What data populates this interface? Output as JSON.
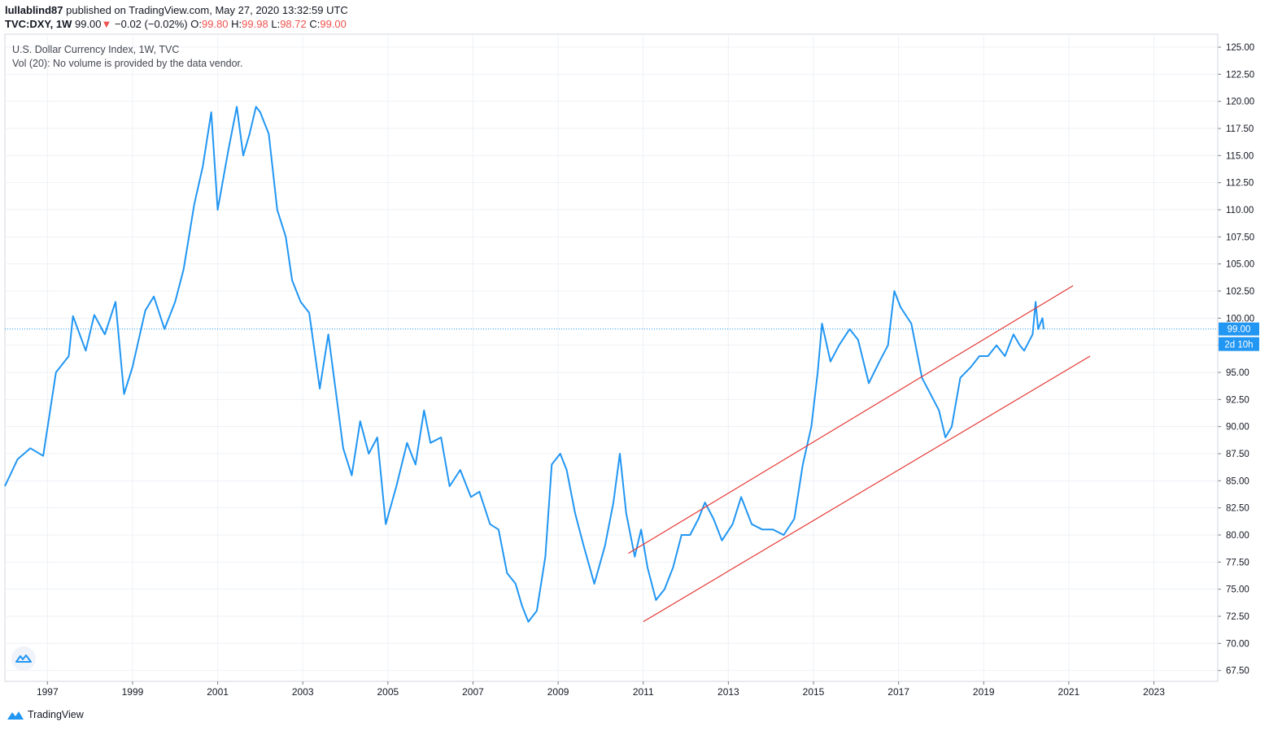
{
  "header": {
    "author": "lullablind87",
    "published_text": "published on TradingView.com, May 27, 2020 13:32:59 UTC",
    "symbol": "TVC:DXY, 1W",
    "last": "99.00",
    "change_arrow": "▼",
    "change": "−0.02 (−0.02%)",
    "o_label": "O:",
    "o_value": "99.80",
    "h_label": "H:",
    "h_value": "99.98",
    "l_label": "L:",
    "l_value": "98.72",
    "c_label": "C:",
    "c_value": "99.00"
  },
  "legend": {
    "title": "U.S. Dollar Currency Index, 1W, TVC",
    "volume": "Vol (20): No volume is provided by the data vendor."
  },
  "price_badge": "99.00",
  "countdown_badge": "2d 10h",
  "footer": {
    "brand": "TradingView"
  },
  "colors": {
    "line": "#2196f3",
    "channel": "#e53935",
    "badge": "#2196f3",
    "grid": "#eef1f6"
  },
  "chart_data": {
    "type": "line",
    "title": "U.S. Dollar Currency Index, 1W, TVC",
    "xlabel": "",
    "ylabel": "",
    "xlim": [
      1996,
      2024.5
    ],
    "ylim": [
      66.5,
      126.2
    ],
    "x_ticks": [
      1997,
      1999,
      2001,
      2003,
      2005,
      2007,
      2009,
      2011,
      2013,
      2015,
      2017,
      2019,
      2021,
      2023
    ],
    "y_ticks": [
      125,
      122.5,
      120,
      117.5,
      115,
      112.5,
      110,
      107.5,
      105,
      102.5,
      100,
      97.5,
      95,
      92.5,
      90,
      87.5,
      85,
      82.5,
      80,
      77.5,
      75,
      72.5,
      70,
      67.5
    ],
    "current_price": 99.0,
    "series": [
      {
        "name": "DXY",
        "points": [
          [
            1996.0,
            84.5
          ],
          [
            1996.3,
            87.0
          ],
          [
            1996.6,
            88.0
          ],
          [
            1996.9,
            87.3
          ],
          [
            1997.2,
            95.0
          ],
          [
            1997.5,
            96.5
          ],
          [
            1997.6,
            100.2
          ],
          [
            1997.9,
            97.0
          ],
          [
            1998.1,
            100.3
          ],
          [
            1998.35,
            98.5
          ],
          [
            1998.6,
            101.5
          ],
          [
            1998.8,
            93.0
          ],
          [
            1999.0,
            95.5
          ],
          [
            1999.3,
            100.7
          ],
          [
            1999.5,
            102.0
          ],
          [
            1999.75,
            99.0
          ],
          [
            2000.0,
            101.5
          ],
          [
            2000.2,
            104.5
          ],
          [
            2000.45,
            110.5
          ],
          [
            2000.65,
            114.0
          ],
          [
            2000.85,
            119.0
          ],
          [
            2001.0,
            110.0
          ],
          [
            2001.25,
            115.5
          ],
          [
            2001.45,
            119.5
          ],
          [
            2001.6,
            115.0
          ],
          [
            2001.75,
            117.0
          ],
          [
            2001.9,
            119.5
          ],
          [
            2002.0,
            119.0
          ],
          [
            2002.2,
            117.0
          ],
          [
            2002.4,
            110.0
          ],
          [
            2002.6,
            107.5
          ],
          [
            2002.75,
            103.5
          ],
          [
            2002.95,
            101.5
          ],
          [
            2003.15,
            100.5
          ],
          [
            2003.4,
            93.5
          ],
          [
            2003.6,
            98.5
          ],
          [
            2003.8,
            92.5
          ],
          [
            2003.95,
            88.0
          ],
          [
            2004.15,
            85.5
          ],
          [
            2004.35,
            90.5
          ],
          [
            2004.55,
            87.5
          ],
          [
            2004.75,
            89.0
          ],
          [
            2004.95,
            81.0
          ],
          [
            2005.2,
            84.5
          ],
          [
            2005.45,
            88.5
          ],
          [
            2005.65,
            86.5
          ],
          [
            2005.85,
            91.5
          ],
          [
            2006.0,
            88.5
          ],
          [
            2006.25,
            89.0
          ],
          [
            2006.45,
            84.5
          ],
          [
            2006.7,
            86.0
          ],
          [
            2006.95,
            83.5
          ],
          [
            2007.15,
            84.0
          ],
          [
            2007.4,
            81.0
          ],
          [
            2007.6,
            80.5
          ],
          [
            2007.8,
            76.5
          ],
          [
            2008.0,
            75.5
          ],
          [
            2008.15,
            73.5
          ],
          [
            2008.3,
            72.0
          ],
          [
            2008.5,
            73.0
          ],
          [
            2008.7,
            78.0
          ],
          [
            2008.85,
            86.5
          ],
          [
            2009.05,
            87.5
          ],
          [
            2009.2,
            86.0
          ],
          [
            2009.4,
            82.0
          ],
          [
            2009.6,
            79.0
          ],
          [
            2009.85,
            75.5
          ],
          [
            2010.1,
            79.0
          ],
          [
            2010.3,
            83.0
          ],
          [
            2010.45,
            87.5
          ],
          [
            2010.6,
            82.0
          ],
          [
            2010.8,
            78.0
          ],
          [
            2010.95,
            80.5
          ],
          [
            2011.1,
            77.0
          ],
          [
            2011.3,
            74.0
          ],
          [
            2011.5,
            75.0
          ],
          [
            2011.7,
            77.0
          ],
          [
            2011.9,
            80.0
          ],
          [
            2012.1,
            80.0
          ],
          [
            2012.3,
            81.5
          ],
          [
            2012.45,
            83.0
          ],
          [
            2012.65,
            81.5
          ],
          [
            2012.85,
            79.5
          ],
          [
            2013.1,
            81.0
          ],
          [
            2013.3,
            83.5
          ],
          [
            2013.55,
            81.0
          ],
          [
            2013.8,
            80.5
          ],
          [
            2014.05,
            80.5
          ],
          [
            2014.3,
            80.0
          ],
          [
            2014.55,
            81.5
          ],
          [
            2014.75,
            86.5
          ],
          [
            2014.95,
            90.0
          ],
          [
            2015.1,
            95.0
          ],
          [
            2015.2,
            99.5
          ],
          [
            2015.4,
            96.0
          ],
          [
            2015.6,
            97.5
          ],
          [
            2015.85,
            99.0
          ],
          [
            2016.05,
            98.0
          ],
          [
            2016.3,
            94.0
          ],
          [
            2016.55,
            96.0
          ],
          [
            2016.75,
            97.5
          ],
          [
            2016.9,
            102.5
          ],
          [
            2017.05,
            101.0
          ],
          [
            2017.3,
            99.5
          ],
          [
            2017.55,
            94.5
          ],
          [
            2017.75,
            93.0
          ],
          [
            2017.95,
            91.5
          ],
          [
            2018.1,
            89.0
          ],
          [
            2018.25,
            90.0
          ],
          [
            2018.45,
            94.5
          ],
          [
            2018.7,
            95.5
          ],
          [
            2018.9,
            96.5
          ],
          [
            2019.1,
            96.5
          ],
          [
            2019.3,
            97.5
          ],
          [
            2019.5,
            96.5
          ],
          [
            2019.7,
            98.5
          ],
          [
            2019.85,
            97.5
          ],
          [
            2019.95,
            97.0
          ],
          [
            2020.15,
            98.5
          ],
          [
            2020.22,
            101.5
          ],
          [
            2020.28,
            99.0
          ],
          [
            2020.38,
            100.0
          ],
          [
            2020.41,
            99.0
          ]
        ]
      }
    ],
    "channel_lines": [
      {
        "from": [
          2011.0,
          72.0
        ],
        "to": [
          2021.5,
          96.5
        ]
      },
      {
        "from": [
          2010.65,
          78.3
        ],
        "to": [
          2021.1,
          103.0
        ]
      }
    ]
  }
}
